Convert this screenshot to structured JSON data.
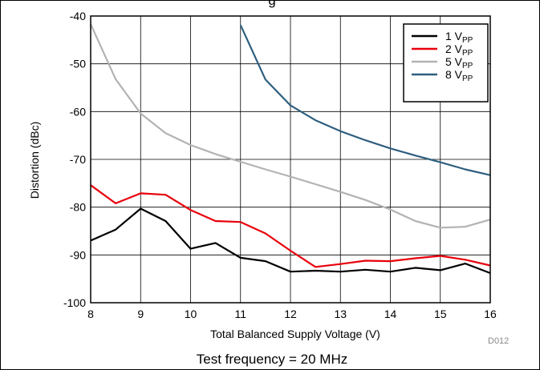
{
  "chart_data": {
    "type": "line",
    "title": "g",
    "xlabel": "Total Balanced Supply Voltage (V)",
    "ylabel": "Distortion (dBc)",
    "xlim": [
      8,
      16
    ],
    "ylim": [
      -100,
      -40
    ],
    "xticks": [
      "8",
      "9",
      "10",
      "11",
      "12",
      "13",
      "14",
      "15",
      "16"
    ],
    "yticks": [
      "-40",
      "-50",
      "-60",
      "-70",
      "-80",
      "-90",
      "-100"
    ],
    "grid": true,
    "legend_position": "top-right",
    "series": [
      {
        "name": "1 V",
        "name_sub": "PP",
        "color": "#000000",
        "x": [
          8,
          8.5,
          9,
          9.5,
          10,
          10.5,
          11,
          11.5,
          12,
          12.5,
          13,
          13.5,
          14,
          14.5,
          15,
          15.5,
          16
        ],
        "y": [
          -87,
          -84.7,
          -80.3,
          -82.9,
          -88.7,
          -87.5,
          -90.6,
          -91.3,
          -93.5,
          -93.3,
          -93.5,
          -93.1,
          -93.5,
          -92.7,
          -93.2,
          -91.8,
          -93.8
        ]
      },
      {
        "name": "2 V",
        "name_sub": "PP",
        "color": "#e8000b",
        "x": [
          8,
          8.5,
          9,
          9.5,
          10,
          10.5,
          11,
          11.5,
          12,
          12.5,
          13,
          13.5,
          14,
          14.5,
          15,
          15.5,
          16
        ],
        "y": [
          -75.4,
          -79.2,
          -77.1,
          -77.4,
          -80.6,
          -82.9,
          -83.1,
          -85.5,
          -89.1,
          -92.5,
          -91.9,
          -91.2,
          -91.3,
          -90.7,
          -90.2,
          -91.0,
          -92.2
        ]
      },
      {
        "name": "5 V",
        "name_sub": "PP",
        "color": "#b3b3b3",
        "x": [
          8,
          8.5,
          9,
          9.5,
          10,
          10.5,
          11,
          11.5,
          12,
          12.5,
          13,
          13.5,
          14,
          14.5,
          15,
          15.5,
          16
        ],
        "y": [
          -41.7,
          -53.2,
          -60.4,
          -64.5,
          -67,
          -68.9,
          -70.5,
          -72.1,
          -73.6,
          -75.2,
          -76.8,
          -78.5,
          -80.5,
          -82.9,
          -84.3,
          -84.1,
          -82.6
        ]
      },
      {
        "name": "8 V",
        "name_sub": "PP",
        "color": "#2f5f7f",
        "x": [
          11,
          11.5,
          12,
          12.5,
          13,
          13.5,
          14,
          14.5,
          15,
          15.5,
          16
        ],
        "y": [
          -41.9,
          -53.3,
          -58.7,
          -61.8,
          -64.1,
          -66,
          -67.7,
          -69.2,
          -70.6,
          -72.1,
          -73.3
        ]
      }
    ],
    "annotations": {
      "code": "D012",
      "caption": "Test frequency = 20 MHz"
    }
  }
}
